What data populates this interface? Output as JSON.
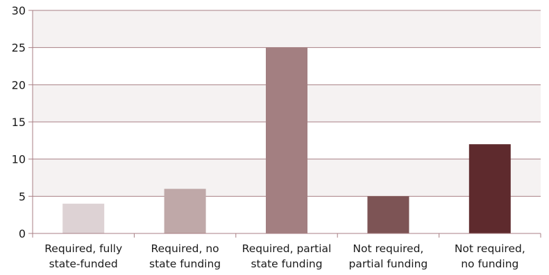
{
  "chart_data": {
    "type": "bar",
    "categories": [
      [
        "Required, fully",
        "state-funded"
      ],
      [
        "Required, no",
        "state funding"
      ],
      [
        "Required, partial",
        "state funding"
      ],
      [
        "Not required,",
        "partial funding"
      ],
      [
        "Not required,",
        "no funding"
      ]
    ],
    "values": [
      4,
      6,
      25,
      5,
      12
    ],
    "bar_colors": [
      "#ddd2d4",
      "#bfa8a8",
      "#a37f81",
      "#7d5455",
      "#5e2a2d"
    ],
    "ylim": [
      0,
      30
    ],
    "yticks": [
      "0",
      "5",
      "10",
      "15",
      "20",
      "25",
      "30"
    ],
    "gridlines": true,
    "band_color": "#f5f2f2",
    "grid_color": "#a87f84",
    "title": "",
    "xlabel": "",
    "ylabel": ""
  }
}
